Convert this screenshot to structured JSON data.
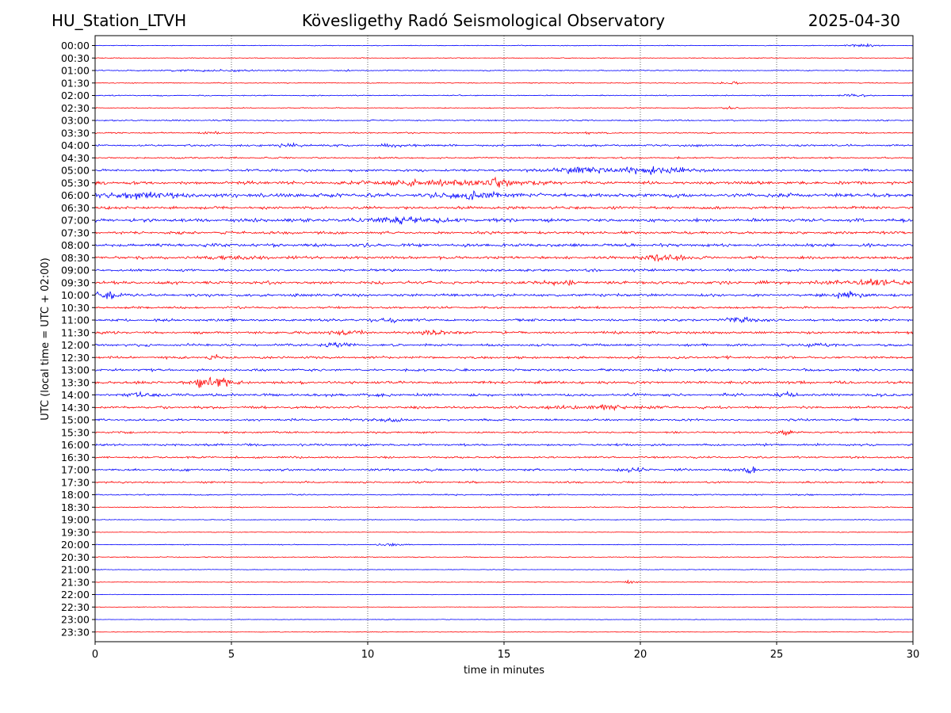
{
  "header": {
    "station": "HU_Station_LTVH",
    "title": "Kövesligethy Radó Seismological Observatory",
    "date": "2025-04-30"
  },
  "chart_data": {
    "type": "line",
    "title": "Kövesligethy Radó Seismological Observatory",
    "xlabel": "time in minutes",
    "ylabel": "UTC (local time = UTC + 02:00)",
    "xlim": [
      0,
      30
    ],
    "x_ticks": [
      0,
      5,
      10,
      15,
      20,
      25,
      30
    ],
    "grid": "vertical dotted lines at 5-minute intervals",
    "colors": {
      "even_rows": "#0000ff",
      "odd_rows": "#ff0000"
    },
    "rows": [
      {
        "label": "00:00",
        "noise": 0.3,
        "events": [
          {
            "t": 28.0,
            "amp": 1.4,
            "w": 0.6
          }
        ]
      },
      {
        "label": "00:30",
        "noise": 0.3,
        "events": []
      },
      {
        "label": "01:00",
        "noise": 0.4,
        "events": [
          {
            "t": 9.3,
            "amp": 1.8,
            "w": 0.05
          },
          {
            "t": 4.5,
            "amp": 0.6,
            "w": 2.0
          }
        ]
      },
      {
        "label": "01:30",
        "noise": 0.35,
        "events": [
          {
            "t": 23.3,
            "amp": 0.9,
            "w": 0.4
          }
        ]
      },
      {
        "label": "02:00",
        "noise": 0.4,
        "events": [
          {
            "t": 27.8,
            "amp": 0.9,
            "w": 0.5
          }
        ]
      },
      {
        "label": "02:30",
        "noise": 0.35,
        "events": [
          {
            "t": 23.2,
            "amp": 0.9,
            "w": 0.4
          }
        ]
      },
      {
        "label": "03:00",
        "noise": 0.5,
        "events": []
      },
      {
        "label": "03:30",
        "noise": 0.5,
        "events": [
          {
            "t": 4.2,
            "amp": 0.9,
            "w": 0.3
          },
          {
            "t": 18.0,
            "amp": 0.9,
            "w": 0.3
          }
        ]
      },
      {
        "label": "04:00",
        "noise": 0.8,
        "events": [
          {
            "t": 7.2,
            "amp": 1.2,
            "w": 0.5
          },
          {
            "t": 11.0,
            "amp": 1.0,
            "w": 0.6
          }
        ]
      },
      {
        "label": "04:30",
        "noise": 0.6,
        "events": []
      },
      {
        "label": "05:00",
        "noise": 0.9,
        "events": [
          {
            "t": 17.5,
            "amp": 1.8,
            "w": 1.2
          },
          {
            "t": 19.5,
            "amp": 2.0,
            "w": 1.3
          },
          {
            "t": 21.0,
            "amp": 1.8,
            "w": 1.2
          }
        ]
      },
      {
        "label": "05:30",
        "noise": 1.1,
        "events": [
          {
            "t": 12.0,
            "amp": 2.2,
            "w": 1.8
          },
          {
            "t": 15.0,
            "amp": 2.6,
            "w": 1.2
          }
        ]
      },
      {
        "label": "06:00",
        "noise": 1.4,
        "events": [
          {
            "t": 1.5,
            "amp": 1.6,
            "w": 1.8
          },
          {
            "t": 13.8,
            "amp": 2.6,
            "w": 1.0
          }
        ]
      },
      {
        "label": "06:30",
        "noise": 1.0,
        "events": []
      },
      {
        "label": "07:00",
        "noise": 1.2,
        "events": [
          {
            "t": 11.0,
            "amp": 1.8,
            "w": 1.5
          }
        ]
      },
      {
        "label": "07:30",
        "noise": 1.0,
        "events": []
      },
      {
        "label": "08:00",
        "noise": 1.1,
        "events": []
      },
      {
        "label": "08:30",
        "noise": 1.1,
        "events": [
          {
            "t": 20.8,
            "amp": 2.4,
            "w": 0.9
          },
          {
            "t": 5.3,
            "amp": 1.5,
            "w": 0.7
          }
        ]
      },
      {
        "label": "09:00",
        "noise": 0.9,
        "events": []
      },
      {
        "label": "09:30",
        "noise": 1.1,
        "events": [
          {
            "t": 17.0,
            "amp": 1.6,
            "w": 0.6
          },
          {
            "t": 28.5,
            "amp": 2.0,
            "w": 1.4
          }
        ]
      },
      {
        "label": "10:00",
        "noise": 1.0,
        "events": [
          {
            "t": 0.5,
            "amp": 2.8,
            "w": 0.5
          },
          {
            "t": 27.5,
            "amp": 2.2,
            "w": 0.6
          }
        ]
      },
      {
        "label": "10:30",
        "noise": 0.8,
        "events": []
      },
      {
        "label": "11:00",
        "noise": 0.9,
        "events": [
          {
            "t": 10.8,
            "amp": 1.6,
            "w": 0.5
          },
          {
            "t": 23.8,
            "amp": 2.2,
            "w": 0.6
          }
        ]
      },
      {
        "label": "11:30",
        "noise": 0.9,
        "events": [
          {
            "t": 9.0,
            "amp": 1.5,
            "w": 0.8
          },
          {
            "t": 12.3,
            "amp": 1.3,
            "w": 0.5
          }
        ]
      },
      {
        "label": "12:00",
        "noise": 0.9,
        "events": [
          {
            "t": 8.8,
            "amp": 1.2,
            "w": 0.6
          },
          {
            "t": 26.5,
            "amp": 1.1,
            "w": 0.5
          }
        ]
      },
      {
        "label": "12:30",
        "noise": 0.9,
        "events": [
          {
            "t": 4.2,
            "amp": 6.0,
            "w": 0.08
          },
          {
            "t": 4.5,
            "amp": 5.0,
            "w": 0.08
          }
        ]
      },
      {
        "label": "13:00",
        "noise": 0.9,
        "events": []
      },
      {
        "label": "13:30",
        "noise": 1.0,
        "events": [
          {
            "t": 4.0,
            "amp": 5.5,
            "w": 0.25
          },
          {
            "t": 4.6,
            "amp": 5.5,
            "w": 0.25
          }
        ]
      },
      {
        "label": "14:00",
        "noise": 1.0,
        "events": [
          {
            "t": 1.8,
            "amp": 1.5,
            "w": 0.6
          },
          {
            "t": 25.5,
            "amp": 1.5,
            "w": 0.4
          }
        ]
      },
      {
        "label": "14:30",
        "noise": 0.9,
        "events": [
          {
            "t": 18.5,
            "amp": 1.4,
            "w": 1.8
          }
        ]
      },
      {
        "label": "15:00",
        "noise": 0.8,
        "events": [
          {
            "t": 10.5,
            "amp": 1.2,
            "w": 0.8
          }
        ]
      },
      {
        "label": "15:30",
        "noise": 0.7,
        "events": [
          {
            "t": 25.3,
            "amp": 2.2,
            "w": 0.4
          }
        ]
      },
      {
        "label": "16:00",
        "noise": 0.8,
        "events": []
      },
      {
        "label": "16:30",
        "noise": 0.7,
        "events": []
      },
      {
        "label": "17:00",
        "noise": 0.8,
        "events": [
          {
            "t": 24.1,
            "amp": 2.4,
            "w": 0.3
          },
          {
            "t": 19.5,
            "amp": 1.2,
            "w": 0.8
          }
        ]
      },
      {
        "label": "17:30",
        "noise": 0.7,
        "events": []
      },
      {
        "label": "18:00",
        "noise": 0.5,
        "events": []
      },
      {
        "label": "18:30",
        "noise": 0.4,
        "events": []
      },
      {
        "label": "19:00",
        "noise": 0.3,
        "events": []
      },
      {
        "label": "19:30",
        "noise": 0.3,
        "events": []
      },
      {
        "label": "20:00",
        "noise": 0.3,
        "events": [
          {
            "t": 10.8,
            "amp": 0.9,
            "w": 0.6
          }
        ]
      },
      {
        "label": "20:30",
        "noise": 0.35,
        "events": []
      },
      {
        "label": "21:00",
        "noise": 0.25,
        "events": []
      },
      {
        "label": "21:30",
        "noise": 0.25,
        "events": [
          {
            "t": 19.5,
            "amp": 1.2,
            "w": 0.4
          }
        ]
      },
      {
        "label": "22:00",
        "noise": 0.2,
        "events": []
      },
      {
        "label": "22:30",
        "noise": 0.2,
        "events": []
      },
      {
        "label": "23:00",
        "noise": 0.2,
        "events": [
          {
            "t": 28.7,
            "amp": 0.8,
            "w": 0.05
          }
        ]
      },
      {
        "label": "23:30",
        "noise": 0.2,
        "events": []
      }
    ]
  }
}
